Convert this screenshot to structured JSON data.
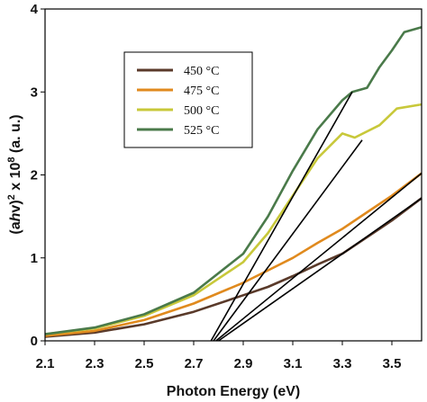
{
  "chart_data": {
    "type": "line",
    "title": "",
    "xlabel": "Photon Energy (eV)",
    "ylabel": "(ahv)² x 10⁸ (a. u.)",
    "ylabel_parts": {
      "prefix": "(a",
      "h": "h",
      "nu": "v",
      "close": ")",
      "sup1": "2",
      "times": " x 10",
      "sup2": "8",
      "units": " (a. u.)"
    },
    "xlim": [
      2.1,
      3.62
    ],
    "ylim": [
      0,
      4
    ],
    "xticks": [
      "2.1",
      "2.3",
      "2.5",
      "2.7",
      "2.9",
      "3.1",
      "3.3",
      "3.5"
    ],
    "yticks": [
      "0",
      "1",
      "2",
      "3",
      "4"
    ],
    "grid": false,
    "legend_position": "upper-left",
    "series": [
      {
        "name": "450 °C",
        "color": "#5a3a2a",
        "x": [
          2.1,
          2.3,
          2.5,
          2.7,
          2.9,
          3.0,
          3.1,
          3.2,
          3.3,
          3.4,
          3.5,
          3.62
        ],
        "y": [
          0.05,
          0.1,
          0.2,
          0.35,
          0.55,
          0.65,
          0.78,
          0.92,
          1.05,
          1.25,
          1.45,
          1.72
        ]
      },
      {
        "name": "475 °C",
        "color": "#e08a1e",
        "x": [
          2.1,
          2.3,
          2.5,
          2.7,
          2.9,
          3.0,
          3.1,
          3.2,
          3.3,
          3.4,
          3.5,
          3.62
        ],
        "y": [
          0.06,
          0.12,
          0.25,
          0.45,
          0.7,
          0.85,
          1.0,
          1.18,
          1.35,
          1.55,
          1.75,
          2.02
        ]
      },
      {
        "name": "500 °C",
        "color": "#c8c83a",
        "x": [
          2.1,
          2.3,
          2.5,
          2.7,
          2.9,
          3.0,
          3.1,
          3.2,
          3.3,
          3.35,
          3.45,
          3.52,
          3.62
        ],
        "y": [
          0.08,
          0.15,
          0.3,
          0.55,
          0.95,
          1.3,
          1.75,
          2.2,
          2.5,
          2.45,
          2.6,
          2.8,
          2.85
        ]
      },
      {
        "name": "525 °C",
        "color": "#4a7a4a",
        "x": [
          2.1,
          2.3,
          2.5,
          2.7,
          2.9,
          3.0,
          3.1,
          3.2,
          3.3,
          3.34,
          3.4,
          3.45,
          3.5,
          3.55,
          3.62
        ],
        "y": [
          0.08,
          0.16,
          0.32,
          0.58,
          1.05,
          1.5,
          2.05,
          2.55,
          2.9,
          3.0,
          3.05,
          3.3,
          3.5,
          3.72,
          3.78
        ]
      }
    ],
    "fit_lines": [
      {
        "name": "450 °C fit",
        "x": [
          2.8,
          3.62
        ],
        "y": [
          0,
          1.72
        ]
      },
      {
        "name": "475 °C fit",
        "x": [
          2.79,
          3.62
        ],
        "y": [
          0,
          2.02
        ]
      },
      {
        "name": "500 °C fit",
        "x": [
          2.78,
          3.38
        ],
        "y": [
          0,
          2.42
        ]
      },
      {
        "name": "525 °C fit",
        "x": [
          2.77,
          3.34
        ],
        "y": [
          0,
          3.0
        ]
      }
    ]
  }
}
